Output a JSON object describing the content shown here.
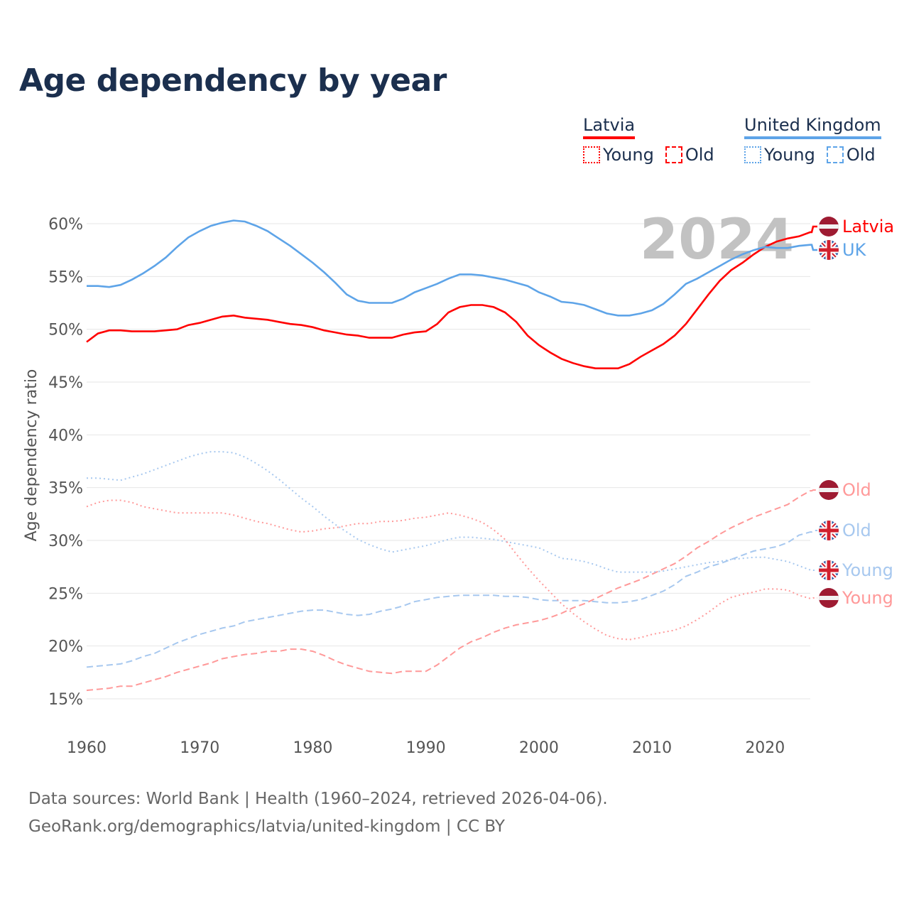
{
  "title": "Age dependency by year",
  "legend": {
    "latvia": {
      "label": "Latvia",
      "young": "Young",
      "old": "Old"
    },
    "uk": {
      "label": "United Kingdom",
      "young": "Young",
      "old": "Old"
    }
  },
  "footer": {
    "line1": "Data sources: World Bank | Health (1960–2024, retrieved 2026-04-06).",
    "line2": "GeoRank.org/demographics/latvia/united-kingdom | CC BY"
  },
  "colors": {
    "latvia": "#ff0000",
    "latvia_light": "#ff9999",
    "uk": "#5ea4e8",
    "uk_light": "#a7c8ef",
    "title": "#1b2f4e"
  },
  "chart_data": {
    "type": "line",
    "title": "Age dependency by year",
    "xlabel": "",
    "ylabel": "Age dependency ratio",
    "year_watermark": "2024",
    "xlim": [
      1960,
      2024
    ],
    "ylim": [
      13,
      62
    ],
    "x_ticks": [
      "1960",
      "1970",
      "1980",
      "1990",
      "2000",
      "2010",
      "2020"
    ],
    "y_ticks": [
      "15%",
      "20%",
      "25%",
      "30%",
      "35%",
      "40%",
      "45%",
      "50%",
      "55%",
      "60%"
    ],
    "grid": true,
    "x_start": 1960,
    "series": [
      {
        "key": "lv_total",
        "name": "Latvia",
        "end_label": "Latvia",
        "flag": "latvia",
        "style": "solid",
        "color": "#ff0000",
        "values": [
          48.8,
          49.6,
          49.9,
          49.9,
          49.8,
          49.8,
          49.8,
          49.9,
          50.0,
          50.4,
          50.6,
          50.9,
          51.2,
          51.3,
          51.1,
          51.0,
          50.9,
          50.7,
          50.5,
          50.4,
          50.2,
          49.9,
          49.7,
          49.5,
          49.4,
          49.2,
          49.2,
          49.2,
          49.5,
          49.7,
          49.8,
          50.5,
          51.6,
          52.1,
          52.3,
          52.3,
          52.1,
          51.6,
          50.7,
          49.4,
          48.5,
          47.8,
          47.2,
          46.8,
          46.5,
          46.3,
          46.3,
          46.3,
          46.7,
          47.4,
          48.0,
          48.6,
          49.4,
          50.5,
          51.9,
          53.3,
          54.6,
          55.6,
          56.3,
          57.1,
          57.8,
          58.3,
          58.6,
          58.8,
          59.2
        ]
      },
      {
        "key": "uk_total",
        "name": "United Kingdom",
        "end_label": "UK",
        "flag": "uk",
        "style": "solid",
        "color": "#5ea4e8",
        "values": [
          54.1,
          54.1,
          54.0,
          54.2,
          54.7,
          55.3,
          56.0,
          56.8,
          57.8,
          58.7,
          59.3,
          59.8,
          60.1,
          60.3,
          60.2,
          59.8,
          59.3,
          58.6,
          57.9,
          57.1,
          56.3,
          55.4,
          54.4,
          53.3,
          52.7,
          52.5,
          52.5,
          52.5,
          52.9,
          53.5,
          53.9,
          54.3,
          54.8,
          55.2,
          55.2,
          55.1,
          54.9,
          54.7,
          54.4,
          54.1,
          53.5,
          53.1,
          52.6,
          52.5,
          52.3,
          51.9,
          51.5,
          51.3,
          51.3,
          51.5,
          51.8,
          52.4,
          53.3,
          54.3,
          54.8,
          55.4,
          56.0,
          56.6,
          57.1,
          57.5,
          57.8,
          57.7,
          57.7,
          57.9,
          58.0
        ]
      },
      {
        "key": "lv_old",
        "name": "Latvia Old",
        "end_label": "Old",
        "flag": "latvia",
        "style": "dashed",
        "color": "#ff9999",
        "values": [
          15.8,
          15.9,
          16.0,
          16.2,
          16.2,
          16.5,
          16.8,
          17.1,
          17.5,
          17.8,
          18.1,
          18.4,
          18.8,
          19.0,
          19.2,
          19.3,
          19.5,
          19.5,
          19.7,
          19.7,
          19.5,
          19.1,
          18.6,
          18.2,
          17.9,
          17.6,
          17.5,
          17.4,
          17.6,
          17.6,
          17.6,
          18.2,
          19.0,
          19.8,
          20.4,
          20.8,
          21.3,
          21.7,
          22.0,
          22.2,
          22.4,
          22.7,
          23.1,
          23.6,
          24.0,
          24.5,
          25.0,
          25.5,
          25.9,
          26.3,
          26.8,
          27.3,
          27.8,
          28.5,
          29.3,
          29.9,
          30.6,
          31.2,
          31.7,
          32.2,
          32.6,
          33.0,
          33.4,
          34.1,
          34.7
        ]
      },
      {
        "key": "uk_old",
        "name": "United Kingdom Old",
        "end_label": "Old",
        "flag": "uk",
        "style": "dashed",
        "color": "#a7c8ef",
        "values": [
          18.0,
          18.1,
          18.2,
          18.3,
          18.6,
          19.0,
          19.3,
          19.8,
          20.3,
          20.7,
          21.1,
          21.4,
          21.7,
          21.9,
          22.3,
          22.5,
          22.7,
          22.9,
          23.1,
          23.3,
          23.4,
          23.4,
          23.2,
          23.0,
          22.9,
          23.0,
          23.3,
          23.5,
          23.8,
          24.2,
          24.4,
          24.6,
          24.7,
          24.8,
          24.8,
          24.8,
          24.8,
          24.7,
          24.7,
          24.6,
          24.4,
          24.3,
          24.3,
          24.3,
          24.3,
          24.2,
          24.1,
          24.1,
          24.2,
          24.4,
          24.8,
          25.2,
          25.8,
          26.6,
          27.0,
          27.5,
          27.8,
          28.2,
          28.6,
          29.0,
          29.2,
          29.4,
          29.8,
          30.5,
          30.8
        ]
      },
      {
        "key": "uk_young",
        "name": "United Kingdom Young",
        "end_label": "Young",
        "flag": "uk",
        "style": "dotted",
        "color": "#a7c8ef",
        "values": [
          35.9,
          35.9,
          35.8,
          35.7,
          36.0,
          36.3,
          36.7,
          37.1,
          37.5,
          37.9,
          38.2,
          38.4,
          38.4,
          38.3,
          37.9,
          37.3,
          36.6,
          35.8,
          34.9,
          34.0,
          33.2,
          32.3,
          31.5,
          30.8,
          30.1,
          29.6,
          29.2,
          28.9,
          29.1,
          29.3,
          29.5,
          29.8,
          30.1,
          30.3,
          30.3,
          30.2,
          30.1,
          29.9,
          29.7,
          29.5,
          29.3,
          28.8,
          28.3,
          28.2,
          28.0,
          27.7,
          27.3,
          27.0,
          27.0,
          27.0,
          27.0,
          27.1,
          27.3,
          27.5,
          27.7,
          27.9,
          28.0,
          28.2,
          28.3,
          28.4,
          28.4,
          28.2,
          28.0,
          27.6,
          27.2
        ]
      },
      {
        "key": "lv_young",
        "name": "Latvia Young",
        "end_label": "Young",
        "flag": "latvia",
        "style": "dotted",
        "color": "#ff9999",
        "values": [
          33.2,
          33.6,
          33.8,
          33.8,
          33.6,
          33.2,
          33.0,
          32.8,
          32.6,
          32.6,
          32.6,
          32.6,
          32.6,
          32.4,
          32.1,
          31.8,
          31.6,
          31.3,
          31.0,
          30.8,
          30.9,
          31.1,
          31.2,
          31.4,
          31.6,
          31.6,
          31.8,
          31.8,
          31.9,
          32.1,
          32.2,
          32.4,
          32.6,
          32.4,
          32.1,
          31.7,
          31.0,
          30.1,
          28.7,
          27.4,
          26.2,
          25.1,
          24.0,
          23.1,
          22.3,
          21.6,
          21.0,
          20.7,
          20.6,
          20.8,
          21.1,
          21.3,
          21.5,
          21.9,
          22.5,
          23.2,
          24.0,
          24.6,
          24.9,
          25.1,
          25.4,
          25.4,
          25.3,
          24.8,
          24.5
        ]
      }
    ]
  }
}
